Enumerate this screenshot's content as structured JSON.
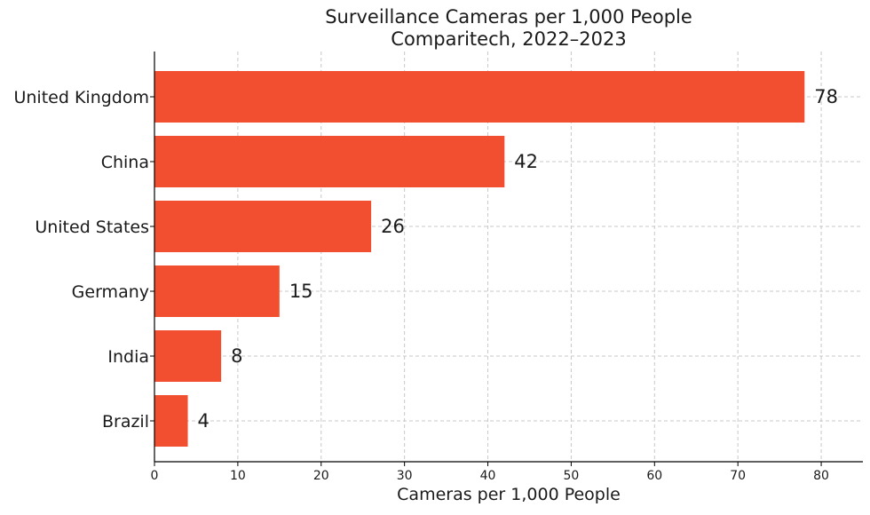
{
  "chart_data": {
    "type": "bar",
    "orientation": "horizontal",
    "title": "Surveillance Cameras per 1,000 People",
    "subtitle": "Comparitech, 2022–2023",
    "xlabel": "Cameras per 1,000 People",
    "ylabel": "",
    "categories": [
      "United Kingdom",
      "China",
      "United States",
      "Germany",
      "India",
      "Brazil"
    ],
    "values": [
      78,
      42,
      26,
      15,
      8,
      4
    ],
    "value_labels": [
      "78",
      "42",
      "26",
      "15",
      "8",
      "4"
    ],
    "xlim": [
      0,
      85
    ],
    "xticks": [
      0,
      10,
      20,
      30,
      40,
      50,
      60,
      70,
      80
    ],
    "xtick_labels": [
      "0",
      "10",
      "20",
      "30",
      "40",
      "50",
      "60",
      "70",
      "80"
    ],
    "grid": true,
    "bar_color": "#f24f30"
  }
}
